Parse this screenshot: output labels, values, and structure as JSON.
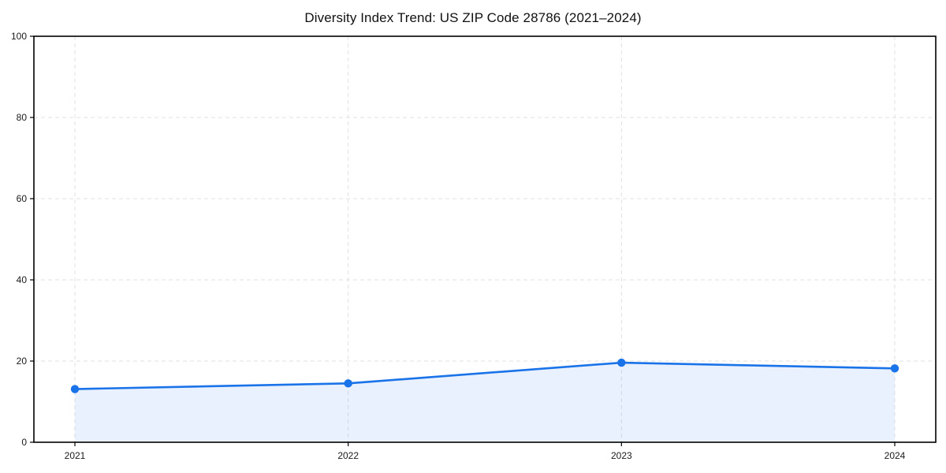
{
  "chart_data": {
    "type": "area",
    "title": "Diversity Index Trend: US ZIP Code 28786 (2021–2024)",
    "categories": [
      "2021",
      "2022",
      "2023",
      "2024"
    ],
    "series": [
      {
        "name": "Diversity Index",
        "values": [
          13.1,
          14.5,
          19.6,
          18.2
        ]
      }
    ],
    "xlabel": "",
    "ylabel": "",
    "ylim": [
      0,
      100
    ],
    "yticks": [
      0,
      20,
      40,
      60,
      80,
      100
    ],
    "grid": "dashed both axes",
    "legend_position": "none",
    "colors": {
      "line": "#1a73e8",
      "marker": "#1a73e8",
      "fill": "#1a73e8",
      "fill_opacity": 0.1,
      "gridline": "#e2e2e2",
      "spine": "#000000",
      "tick_label": "#1a1a1a",
      "title": "#111111",
      "background": "#ffffff"
    }
  }
}
